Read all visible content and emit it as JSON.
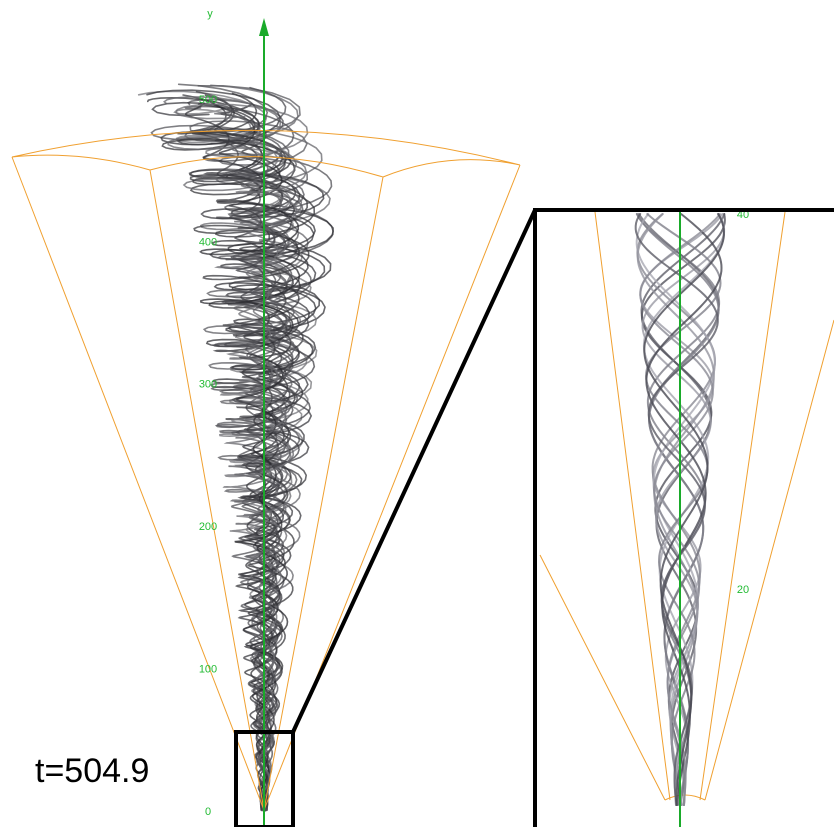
{
  "main_axis": {
    "label": "y",
    "ticks": [
      0,
      100,
      200,
      300,
      400,
      500
    ]
  },
  "inset_axis": {
    "ticks": [
      20,
      40
    ]
  },
  "time_label": "t=504.9"
}
